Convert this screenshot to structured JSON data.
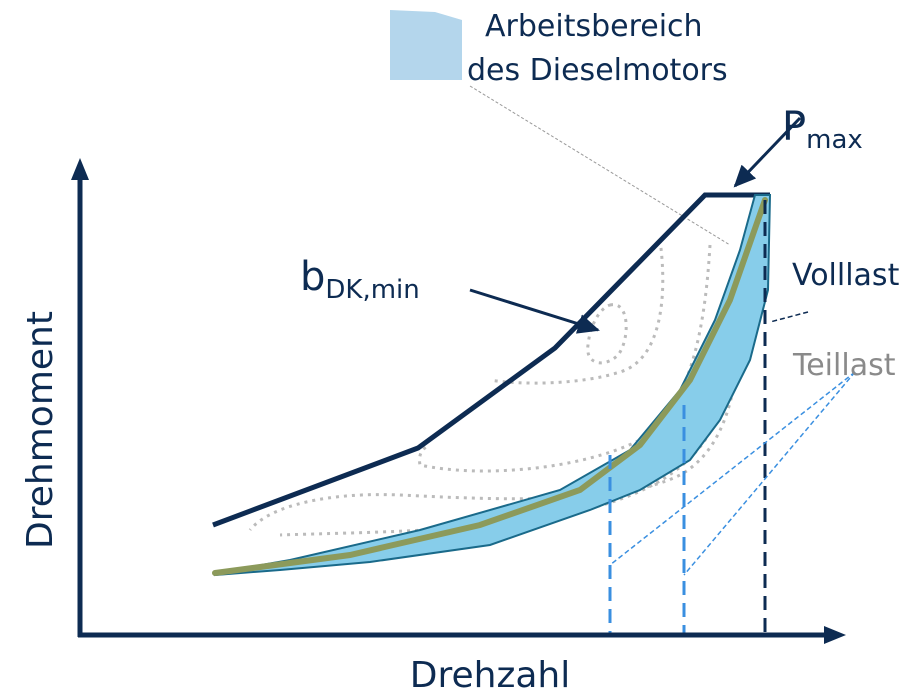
{
  "legend": {
    "line1": "Arbeitsbereich",
    "line2": "des Dieselmotors"
  },
  "labels": {
    "pmax": {
      "base": "P",
      "sub": "max"
    },
    "bmin": {
      "base": "b",
      "sub": "DK,min"
    },
    "volllast": "Volllast",
    "teillast": "Teillast"
  },
  "axes": {
    "y": "Drehmoment",
    "x": "Drehzahl"
  }
}
